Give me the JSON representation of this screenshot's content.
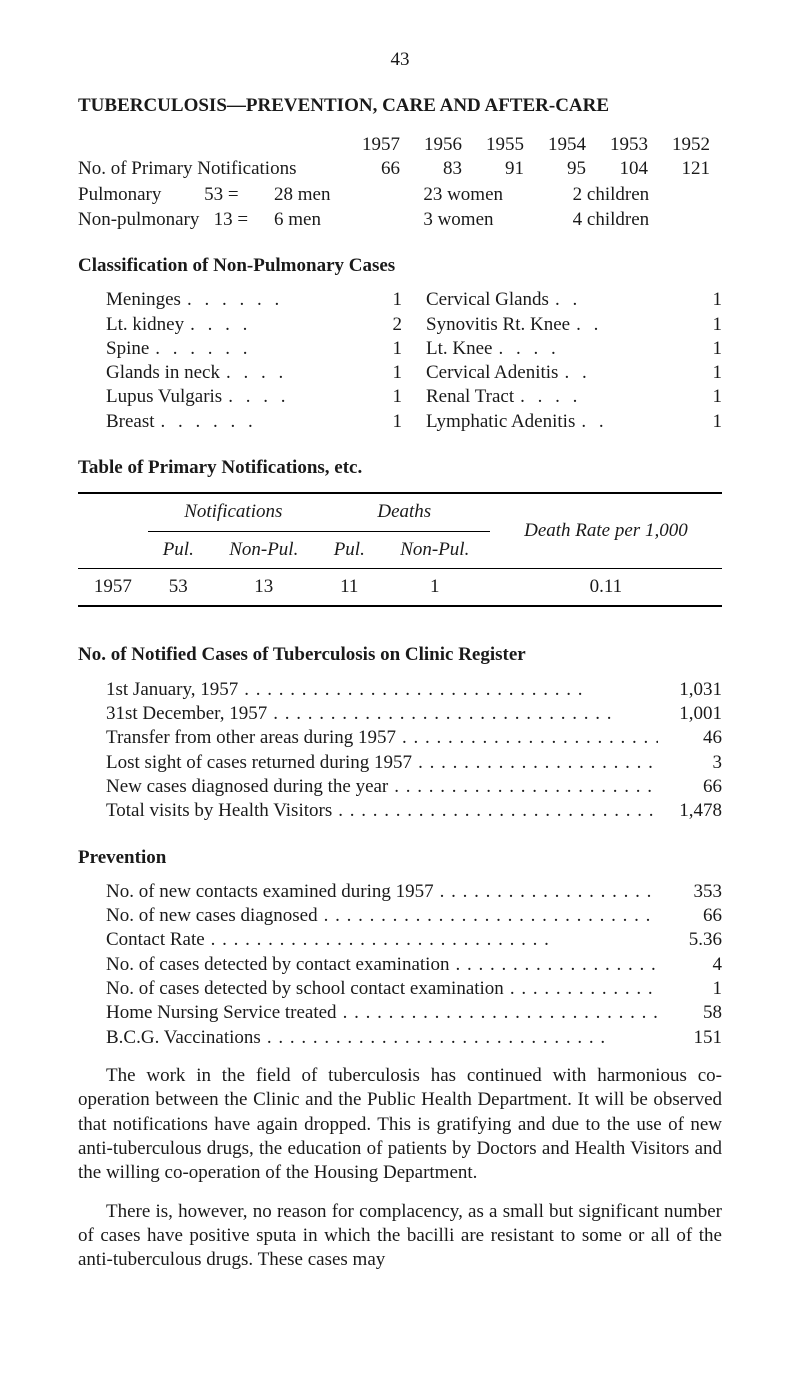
{
  "page_number": "43",
  "title": "TUBERCULOSIS—PREVENTION, CARE AND AFTER-CARE",
  "year_header": [
    "1957",
    "1956",
    "1955",
    "1954",
    "1953",
    "1952"
  ],
  "primary_notif": {
    "label": "No. of Primary Notifications",
    "values": [
      "66",
      "83",
      "91",
      "95",
      "104",
      "121"
    ]
  },
  "breakdown": [
    {
      "cat": "Pulmonary",
      "count": "53",
      "eq": "=",
      "men": "28 men",
      "wom": "23 women",
      "ch": "2 children"
    },
    {
      "cat": "Non-pulmonary",
      "count": "13",
      "eq": "=",
      "men": "6 men",
      "wom": "3 women",
      "ch": "4 children"
    }
  ],
  "class_np": {
    "heading": "Classification of Non-Pulmonary Cases",
    "left": [
      {
        "name": "Meninges",
        "v": "1"
      },
      {
        "name": "Lt. kidney",
        "v": "2"
      },
      {
        "name": "Spine",
        "v": "1"
      },
      {
        "name": "Glands in neck",
        "v": "1"
      },
      {
        "name": "Lupus Vulgaris",
        "v": "1"
      },
      {
        "name": "Breast",
        "v": "1"
      }
    ],
    "right": [
      {
        "name": "Cervical Glands",
        "v": "1"
      },
      {
        "name": "Synovitis Rt. Knee",
        "v": "1"
      },
      {
        "name": "Lt. Knee",
        "v": "1"
      },
      {
        "name": "Cervical Adenitis",
        "v": "1"
      },
      {
        "name": "Renal Tract",
        "v": "1"
      },
      {
        "name": "Lymphatic Adenitis",
        "v": "1"
      }
    ]
  },
  "table_pn": {
    "heading": "Table of Primary Notifications, etc.",
    "head_notif": "Notifications",
    "head_deaths": "Deaths",
    "head_rate": "Death Rate per 1,000",
    "sub_pul": "Pul.",
    "sub_nonpul": "Non-Pul.",
    "year": "1957",
    "cells": [
      "53",
      "13",
      "11",
      "1",
      "0.11"
    ]
  },
  "register": {
    "heading": "No. of Notified Cases of Tuberculosis on Clinic Register",
    "rows": [
      {
        "t": "1st January, 1957",
        "v": "1,031"
      },
      {
        "t": "31st December, 1957",
        "v": "1,001"
      },
      {
        "t": "Transfer from other areas during 1957",
        "v": "46"
      },
      {
        "t": "Lost sight of cases returned during 1957",
        "v": "3"
      },
      {
        "t": "New cases diagnosed during the year",
        "v": "66"
      },
      {
        "t": "Total visits by Health Visitors",
        "v": "1,478"
      }
    ]
  },
  "prevention": {
    "heading": "Prevention",
    "rows": [
      {
        "t": "No. of new contacts examined during 1957",
        "v": "353"
      },
      {
        "t": "No. of new cases diagnosed",
        "v": "66"
      },
      {
        "t": "Contact Rate",
        "v": "5.36"
      },
      {
        "t": "No. of cases detected by contact examination",
        "v": "4"
      },
      {
        "t": "No. of cases detected by school contact examination",
        "v": "1"
      },
      {
        "t": "Home Nursing Service treated",
        "v": "58"
      },
      {
        "t": "B.C.G. Vaccinations",
        "v": "151"
      }
    ]
  },
  "para1": "The work in the field of tuberculosis has continued with harmonious co-operation between the Clinic and the Public Health Department. It will be observed that notifications have again dropped. This is gratifying and due to the use of new anti-tuberculous drugs, the education of patients by Doctors and Health Visitors and the willing co-operation of the Housing Department.",
  "para2": "There is, however, no reason for complacency, as a small but significant number of cases have positive sputa in which the bacilli are resistant to some or all of the anti-tuberculous drugs. These cases may",
  "dotfill": "  . .   . .   . .   . .   . .   . .   . .   . .   . .   . .   . .   . .   . .   . .   . ."
}
